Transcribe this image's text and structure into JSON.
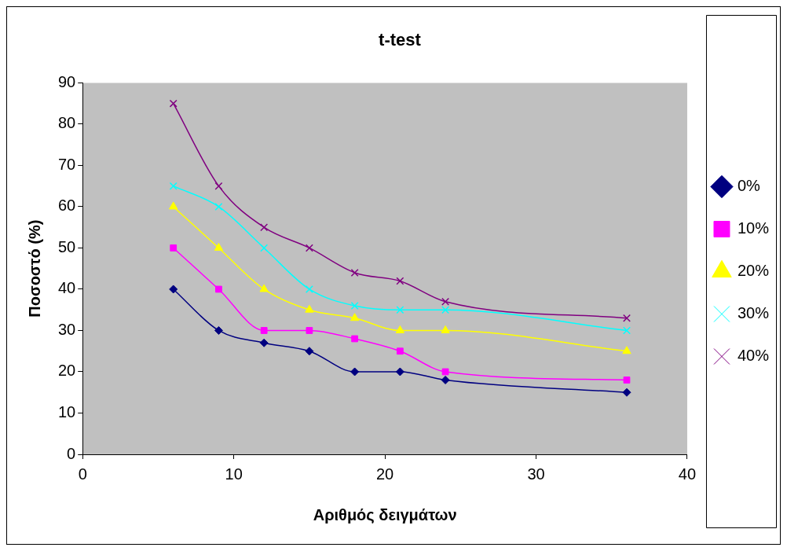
{
  "chart_data": {
    "type": "line",
    "title": "t-test",
    "xlabel": "Αριθμός δειγμάτων",
    "ylabel": "Ποσοστό (%)",
    "x": [
      6,
      9,
      12,
      15,
      18,
      21,
      24,
      36
    ],
    "series": [
      {
        "name": "0%",
        "color": "#000080",
        "marker": "diamond",
        "values": [
          40,
          30,
          27,
          25,
          20,
          20,
          18,
          15
        ]
      },
      {
        "name": "10%",
        "color": "#ff00ff",
        "marker": "square",
        "values": [
          50,
          40,
          30,
          30,
          28,
          25,
          20,
          18
        ]
      },
      {
        "name": "20%",
        "color": "#ffff00",
        "marker": "triangle",
        "values": [
          60,
          50,
          40,
          35,
          33,
          30,
          30,
          25
        ]
      },
      {
        "name": "30%",
        "color": "#00ffff",
        "marker": "cross",
        "values": [
          65,
          60,
          50,
          40,
          36,
          35,
          35,
          30
        ]
      },
      {
        "name": "40%",
        "color": "#800080",
        "marker": "cross",
        "values": [
          85,
          65,
          55,
          50,
          44,
          42,
          37,
          33
        ]
      }
    ],
    "xlim": [
      0,
      40
    ],
    "xticks": [
      0,
      10,
      20,
      30,
      40
    ],
    "ylim": [
      0,
      90
    ],
    "yticks": [
      0,
      10,
      20,
      30,
      40,
      50,
      60,
      70,
      80,
      90
    ],
    "grid": false,
    "legend": "right"
  }
}
